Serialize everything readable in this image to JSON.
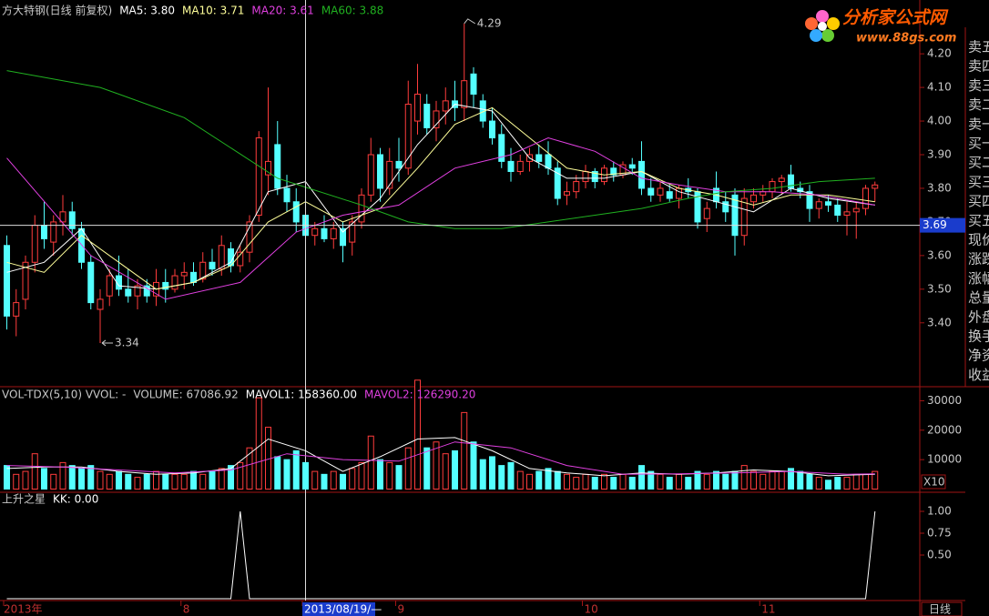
{
  "chart_data": [
    {
      "type": "candlestick",
      "title": "方大特钢(日线 前复权)",
      "categories": [
        "2013年",
        null,
        null,
        null,
        null,
        null,
        null,
        null,
        null,
        null,
        null,
        null,
        null,
        null,
        null,
        null,
        null,
        null,
        null,
        "8",
        null,
        null,
        null,
        null,
        null,
        null,
        null,
        null,
        null,
        null,
        null,
        null,
        "2013/08/19/—",
        null,
        null,
        null,
        null,
        null,
        null,
        null,
        null,
        null,
        "9",
        null,
        null,
        null,
        null,
        null,
        null,
        null,
        null,
        null,
        null,
        null,
        null,
        null,
        null,
        null,
        null,
        null,
        null,
        null,
        "10",
        null,
        null,
        null,
        null,
        null,
        null,
        null,
        null,
        null,
        null,
        null,
        null,
        null,
        null,
        null,
        null,
        null,
        null,
        "11",
        null,
        null,
        null,
        null,
        null,
        null,
        null,
        null,
        null,
        null,
        null,
        null
      ],
      "open": [
        3.63,
        3.42,
        3.47,
        3.58,
        3.69,
        3.64,
        3.7,
        3.73,
        3.68,
        3.58,
        3.44,
        3.48,
        3.54,
        3.5,
        3.48,
        3.51,
        3.48,
        3.52,
        3.5,
        3.54,
        3.55,
        3.53,
        3.58,
        3.56,
        3.62,
        3.57,
        3.61,
        3.72,
        3.84,
        3.93,
        3.8,
        3.76,
        3.72,
        3.66,
        3.68,
        3.65,
        3.68,
        3.64,
        3.7,
        3.78,
        3.9,
        3.8,
        3.88,
        3.86,
        4.0,
        4.05,
        3.98,
        4.03,
        4.06,
        4.04,
        4.14,
        4.06,
        4.0,
        3.96,
        3.88,
        3.85,
        3.88,
        3.9,
        3.9,
        3.86,
        3.78,
        3.79,
        3.82,
        3.85,
        3.82,
        3.86,
        3.84,
        3.87,
        3.88,
        3.8,
        3.78,
        3.79,
        3.77,
        3.8,
        3.79,
        3.71,
        3.8,
        3.76,
        3.78,
        3.66,
        3.76,
        3.78,
        3.79,
        3.82,
        3.84,
        3.8,
        3.79,
        3.74,
        3.76,
        3.75,
        3.72,
        3.73,
        3.74,
        3.8
      ],
      "high": [
        3.66,
        3.5,
        3.6,
        3.72,
        3.76,
        3.72,
        3.78,
        3.76,
        3.7,
        3.6,
        3.5,
        3.56,
        3.6,
        3.56,
        3.53,
        3.53,
        3.56,
        3.56,
        3.56,
        3.58,
        3.58,
        3.61,
        3.62,
        3.66,
        3.64,
        3.63,
        3.72,
        3.97,
        4.1,
        4.0,
        3.84,
        3.8,
        3.76,
        3.7,
        3.72,
        3.7,
        3.7,
        3.72,
        3.8,
        3.95,
        3.92,
        3.92,
        3.95,
        4.12,
        4.17,
        4.08,
        4.06,
        4.1,
        4.12,
        4.29,
        4.16,
        4.08,
        4.04,
        3.99,
        3.92,
        3.9,
        3.92,
        3.93,
        3.94,
        3.88,
        3.82,
        3.84,
        3.87,
        3.86,
        3.87,
        3.88,
        3.88,
        3.89,
        3.94,
        3.83,
        3.82,
        3.81,
        3.81,
        3.83,
        3.8,
        3.76,
        3.85,
        3.79,
        3.8,
        3.8,
        3.8,
        3.81,
        3.83,
        3.84,
        3.87,
        3.82,
        3.81,
        3.77,
        3.78,
        3.77,
        3.76,
        3.76,
        3.81,
        3.82
      ],
      "low": [
        3.38,
        3.36,
        3.44,
        3.55,
        3.62,
        3.6,
        3.66,
        3.66,
        3.56,
        3.44,
        3.34,
        3.45,
        3.48,
        3.46,
        3.44,
        3.46,
        3.45,
        3.46,
        3.49,
        3.5,
        3.51,
        3.52,
        3.54,
        3.54,
        3.55,
        3.55,
        3.58,
        3.7,
        3.78,
        3.78,
        3.73,
        3.67,
        3.64,
        3.63,
        3.64,
        3.62,
        3.58,
        3.6,
        3.68,
        3.76,
        3.76,
        3.78,
        3.82,
        3.84,
        3.96,
        3.96,
        3.94,
        3.99,
        4.0,
        4.0,
        4.04,
        3.98,
        3.93,
        3.86,
        3.82,
        3.84,
        3.85,
        3.86,
        3.84,
        3.75,
        3.75,
        3.77,
        3.8,
        3.8,
        3.81,
        3.82,
        3.83,
        3.84,
        3.78,
        3.76,
        3.76,
        3.76,
        3.74,
        3.77,
        3.68,
        3.67,
        3.74,
        3.7,
        3.6,
        3.63,
        3.74,
        3.76,
        3.77,
        3.78,
        3.79,
        3.77,
        3.7,
        3.71,
        3.73,
        3.7,
        3.66,
        3.65,
        3.72,
        3.76
      ],
      "close": [
        3.42,
        3.46,
        3.58,
        3.69,
        3.65,
        3.7,
        3.73,
        3.68,
        3.58,
        3.46,
        3.47,
        3.54,
        3.5,
        3.48,
        3.51,
        3.48,
        3.52,
        3.5,
        3.54,
        3.55,
        3.52,
        3.58,
        3.56,
        3.63,
        3.57,
        3.61,
        3.7,
        3.95,
        3.88,
        3.8,
        3.76,
        3.7,
        3.66,
        3.68,
        3.65,
        3.68,
        3.63,
        3.7,
        3.78,
        3.9,
        3.8,
        3.88,
        3.86,
        4.05,
        4.08,
        3.98,
        4.03,
        4.06,
        4.04,
        4.12,
        4.08,
        4.0,
        3.95,
        3.88,
        3.85,
        3.88,
        3.9,
        3.88,
        3.86,
        3.77,
        3.79,
        3.82,
        3.85,
        3.82,
        3.86,
        3.84,
        3.87,
        3.86,
        3.8,
        3.78,
        3.8,
        3.77,
        3.8,
        3.79,
        3.7,
        3.74,
        3.76,
        3.73,
        3.66,
        3.77,
        3.78,
        3.79,
        3.82,
        3.83,
        3.8,
        3.79,
        3.74,
        3.76,
        3.75,
        3.72,
        3.73,
        3.74,
        3.8,
        3.81
      ],
      "up_color": "#ff3c3c",
      "down_color": "#54ffff",
      "series": [
        {
          "name": "MA5: 3.80",
          "color": "#ffffff",
          "x": [
            0,
            4,
            8,
            12,
            16,
            20,
            24,
            28,
            32,
            36,
            40,
            44,
            48,
            52,
            56,
            60,
            64,
            68,
            72,
            76,
            80,
            84,
            88,
            93
          ],
          "values": [
            3.55,
            3.58,
            3.68,
            3.51,
            3.5,
            3.52,
            3.58,
            3.79,
            3.82,
            3.67,
            3.77,
            3.93,
            4.05,
            4.03,
            3.89,
            3.83,
            3.83,
            3.85,
            3.79,
            3.76,
            3.73,
            3.8,
            3.77,
            3.75
          ]
        },
        {
          "name": "MA10: 3.71",
          "color": "#ffff9a",
          "x": [
            0,
            4,
            8,
            12,
            16,
            20,
            24,
            28,
            32,
            36,
            40,
            44,
            48,
            52,
            56,
            60,
            64,
            68,
            72,
            76,
            80,
            84,
            88,
            93
          ],
          "values": [
            3.58,
            3.55,
            3.66,
            3.58,
            3.5,
            3.52,
            3.57,
            3.7,
            3.76,
            3.7,
            3.74,
            3.86,
            3.99,
            4.04,
            3.95,
            3.86,
            3.84,
            3.85,
            3.8,
            3.78,
            3.75,
            3.78,
            3.78,
            3.76
          ]
        },
        {
          "name": "MA20: 3.61",
          "color": "#e040e0",
          "x": [
            0,
            9,
            17,
            25,
            31,
            36,
            42,
            48,
            54,
            58,
            63,
            68,
            72,
            77,
            82,
            87,
            93
          ],
          "values": [
            3.89,
            3.6,
            3.47,
            3.52,
            3.67,
            3.72,
            3.75,
            3.86,
            3.9,
            3.95,
            3.91,
            3.83,
            3.81,
            3.79,
            3.79,
            3.78,
            3.75
          ]
        },
        {
          "name": "MA60: 3.88",
          "color": "#20b020",
          "x": [
            0,
            10,
            19,
            29,
            38,
            43,
            48,
            53,
            58,
            63,
            68,
            73,
            77,
            82,
            87,
            93
          ],
          "values": [
            4.15,
            4.1,
            4.01,
            3.83,
            3.75,
            3.7,
            3.68,
            3.68,
            3.7,
            3.72,
            3.74,
            3.77,
            3.79,
            3.8,
            3.82,
            3.83
          ]
        }
      ],
      "ylim": [
        3.21,
        4.36
      ],
      "yticks": [
        {
          "value": 3.4,
          "label": "3.40"
        },
        {
          "value": 3.5,
          "label": "3.50"
        },
        {
          "value": 3.6,
          "label": "3.60"
        },
        {
          "value": 3.7,
          "label": "3.70"
        },
        {
          "value": 3.8,
          "label": "3.80"
        },
        {
          "value": 3.9,
          "label": "3.90"
        },
        {
          "value": 4.0,
          "label": "4.00"
        },
        {
          "value": 4.1,
          "label": "4.10"
        },
        {
          "value": 4.2,
          "label": "4.20"
        }
      ],
      "annotations": [
        {
          "value": 4.29,
          "anchor": "high"
        },
        {
          "value": 3.34,
          "anchor": "low"
        }
      ],
      "crosshair": {
        "value": 3.69,
        "x": 32
      }
    },
    {
      "type": "bar",
      "title": "VOL-TDX(5,10) VVOL: -",
      "series": [
        {
          "name": "VOLUME: 67086.92",
          "values": [
            8000,
            5000,
            6000,
            12000,
            7000,
            5000,
            9000,
            8000,
            7000,
            8000,
            6000,
            5000,
            6000,
            5000,
            4000,
            5000,
            6000,
            5000,
            5000,
            5000,
            6000,
            5000,
            6000,
            7000,
            8000,
            9000,
            14000,
            31000,
            21000,
            11000,
            10000,
            13000,
            9000,
            6000,
            5000,
            6000,
            5000,
            7000,
            9000,
            18000,
            10000,
            9000,
            8000,
            14000,
            37000,
            14000,
            16000,
            12000,
            13000,
            26000,
            16000,
            10000,
            11000,
            8000,
            9000,
            6000,
            5000,
            6000,
            7000,
            6000,
            5000,
            4000,
            5000,
            4000,
            5000,
            4000,
            5000,
            4000,
            8000,
            6000,
            5000,
            4000,
            5000,
            4000,
            6000,
            5000,
            6000,
            5000,
            6000,
            8000,
            6000,
            5000,
            6000,
            6000,
            7000,
            6000,
            5000,
            4000,
            3000,
            4000,
            4000,
            5000,
            5000,
            6000
          ]
        },
        {
          "name": "MAVOL1: 158360.00",
          "color": "#ffffff",
          "x": [
            0,
            4,
            8,
            12,
            16,
            20,
            24,
            28,
            32,
            36,
            40,
            44,
            48,
            52,
            56,
            60,
            64,
            68,
            72,
            76,
            80,
            84,
            88,
            93
          ],
          "values": [
            7000,
            7500,
            7500,
            6000,
            5000,
            5500,
            7000,
            17000,
            13000,
            6000,
            11000,
            17000,
            17500,
            13000,
            7000,
            5500,
            4500,
            5500,
            5000,
            5500,
            6500,
            6000,
            4500,
            5000
          ]
        },
        {
          "name": "MAVOL2: 126290.20",
          "color": "#e040e0",
          "x": [
            0,
            6,
            12,
            18,
            24,
            30,
            36,
            42,
            48,
            54,
            60,
            66,
            72,
            78,
            84,
            90,
            93
          ],
          "values": [
            8000,
            7500,
            6500,
            5500,
            6500,
            12000,
            10000,
            9500,
            16000,
            14000,
            8000,
            5000,
            5200,
            5500,
            6000,
            5000,
            5200
          ]
        }
      ],
      "ylim": [
        0,
        34000
      ],
      "yticks": [
        10000,
        20000,
        30000
      ],
      "unit_label": "X10"
    },
    {
      "type": "line",
      "title": "上升之星",
      "series": [
        {
          "name": "KK: 0.00",
          "color": "#ffffff",
          "values": [
            0,
            0,
            0,
            0,
            0,
            0,
            0,
            0,
            0,
            0,
            0,
            0,
            0,
            0,
            0,
            0,
            0,
            0,
            0,
            0,
            0,
            0,
            0,
            0,
            0,
            1,
            0,
            0,
            0,
            0,
            0,
            0,
            0,
            0,
            0,
            0,
            0,
            0,
            0,
            0,
            0,
            0,
            0,
            0,
            0,
            0,
            0,
            0,
            0,
            0,
            0,
            0,
            0,
            0,
            0,
            0,
            0,
            0,
            0,
            0,
            0,
            0,
            0,
            0,
            0,
            0,
            0,
            0,
            0,
            0,
            0,
            0,
            0,
            0,
            0,
            0,
            0,
            0,
            0,
            0,
            0,
            0,
            0,
            0,
            0,
            0,
            0,
            0,
            0,
            0,
            0,
            0,
            0,
            1
          ]
        }
      ],
      "ylim": [
        0,
        1
      ],
      "yticks": [
        {
          "value": 0.5,
          "label": "0.50"
        },
        {
          "value": 0.75,
          "label": "0.75"
        },
        {
          "value": 1,
          "label": "1.00"
        }
      ]
    }
  ],
  "period": "日线",
  "sidebar": [
    "卖五",
    "卖四",
    "卖三",
    "卖二",
    "卖一",
    "买一",
    "买二",
    "买三",
    "买四",
    "买五",
    "现价",
    "涨跌",
    "涨幅",
    "总量",
    "外盘",
    "换手",
    "净资",
    "收益"
  ],
  "logo": {
    "name": "分析家公式网",
    "url": "www.88gs.com"
  }
}
